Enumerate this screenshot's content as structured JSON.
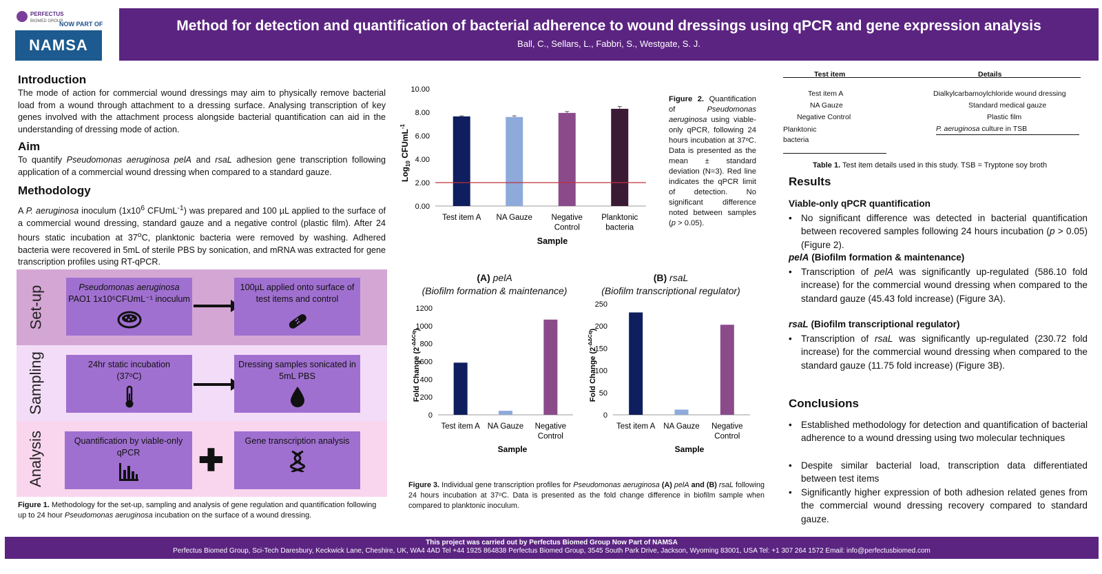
{
  "logo": {
    "brand": "PERFECTUS",
    "brand_sub": "BIOMED GROUP",
    "now_part": "NOW PART OF",
    "namsa": "NAMSA"
  },
  "header": {
    "title": "Method for detection and quantification of bacterial adherence to wound dressings using qPCR and gene expression analysis",
    "authors": "Ball, C., Sellars, L., Fabbri, S., Westgate, S. J."
  },
  "intro": {
    "heading": "Introduction",
    "text": "The mode of action for commercial wound dressings may aim to physically remove bacterial load from a wound through attachment to a dressing surface. Analysing transcription of key genes involved with the attachment process alongside bacterial quantification can aid in the understanding of dressing mode of action."
  },
  "aim": {
    "heading": "Aim",
    "pre": "To quantify ",
    "species": "Pseudomonas aeruginosa pelA",
    "mid": " and ",
    "gene": "rsaL",
    "post": " adhesion gene transcription following application of a commercial wound dressing when compared to a standard gauze."
  },
  "methodology": {
    "heading": "Methodology",
    "pre": "A ",
    "species": "P. aeruginosa",
    "mid1": " inoculum (1x10",
    "sup1": "6",
    "mid2": " CFUmL",
    "sup2": "-1",
    "mid3": ") was prepared and 100 µL applied to the surface of a commercial wound dressing, standard gauze and a negative control (plastic film). After 24 hours static incubation at 37",
    "sup3": "o",
    "post": "C, planktonic bacteria were removed by washing. Adhered bacteria were recovered in 5mL of sterile PBS by sonication, and mRNA was extracted for gene transcription profiles using RT-qPCR."
  },
  "flow": {
    "setup_label": "Set-up",
    "sampling_label": "Sampling",
    "analysis_label": "Analysis",
    "setup_box1_line1": "Pseudomonas aeruginosa",
    "setup_box1_line2": "PAO1 1x10⁶CFUmL⁻¹ inoculum",
    "setup_box2": "100µL applied onto surface of test items and control",
    "sampling_box1_line1": "24hr static incubation",
    "sampling_box1_line2": "(37ᵒC)",
    "sampling_box2": "Dressing samples sonicated in 5mL PBS",
    "analysis_box1": "Quantification by viable-only qPCR",
    "analysis_box2": "Gene transcription analysis",
    "icons": [
      "petri-dish-icon",
      "bandage-icon",
      "thermometer-icon",
      "droplet-icon",
      "bar-chart-icon",
      "dna-icon",
      "plus-icon"
    ],
    "colors": {
      "setup_band": "#d4a6d4",
      "sampling_band": "#f3dcf7",
      "analysis_band": "#f9d6ee",
      "box": "#a070d0"
    }
  },
  "fig1_caption": {
    "label": "Figure 1.",
    "pre": "  Methodology for the set-up, sampling and analysis of gene regulation and quantification following up to 24 hour ",
    "species": "Pseudomonas aeruginosa",
    "post": " incubation on the surface of a wound dressing."
  },
  "fig2_caption": {
    "label": "Figure 2.",
    "pre": " Quantification of ",
    "species": "Pseudomonas aeruginosa",
    "post": " using viable-only qPCR, following 24 hours incubation at 37ᵒC. Data is presented as the mean ± standard deviation (N=3). Red line indicates the qPCR limit of detection. No significant difference noted between samples (",
    "p": "p",
    "end": " > 0.05)."
  },
  "fig3": {
    "a_title_prefix": "(A) ",
    "a_title_gene": "pelA",
    "a_subtitle": "(Biofilm formation & maintenance)",
    "b_title_prefix": "(B) ",
    "b_title_gene": "rsaL",
    "b_subtitle": "(Biofilm transcriptional regulator)"
  },
  "fig3_caption": {
    "label": "Figure 3.",
    "pre": "  Individual gene transcription profiles for ",
    "species": "Pseudomonas aeruginosa",
    "a": " (A) ",
    "gene_a": "pelA",
    "and": " and (B) ",
    "gene_b": "rsaL",
    "post": " following 24 hours incubation at 37ᵒC. Data is presented as the fold change difference in biofilm sample when compared to planktonic inoculum."
  },
  "chart_data": [
    {
      "type": "bar",
      "categories": [
        "Test item A",
        "NA Gauze",
        "Negative Control",
        "Planktonic bacteria"
      ],
      "values": [
        7.65,
        7.6,
        7.95,
        8.3
      ],
      "errors": [
        0.05,
        0.1,
        0.12,
        0.2
      ],
      "colors": [
        "#0f1e5e",
        "#8eaadb",
        "#8b4b8b",
        "#3b1a35"
      ],
      "xlabel": "Sample",
      "ylabel": "Log10 CFUmL-1",
      "ylim": [
        0,
        10
      ],
      "yticks": [
        "0.00",
        "2.00",
        "4.00",
        "6.00",
        "8.00",
        "10.00"
      ],
      "limit_line": 2.0,
      "limit_color": "#c0303a"
    },
    {
      "type": "bar",
      "categories": [
        "Test item A",
        "NA Gauze",
        "Negative Control"
      ],
      "values": [
        586.1,
        45.43,
        1070
      ],
      "colors": [
        "#0f1e5e",
        "#8eaadb",
        "#8b4b8b"
      ],
      "xlabel": "Sample",
      "ylabel": "Fold Change (2-ΔΔCq)",
      "ylim": [
        0,
        1200
      ],
      "yticks": [
        "0",
        "200",
        "400",
        "600",
        "800",
        "1000",
        "1200"
      ]
    },
    {
      "type": "bar",
      "categories": [
        "Test item A",
        "NA Gauze",
        "Negative Control"
      ],
      "values": [
        230.72,
        11.75,
        203
      ],
      "colors": [
        "#0f1e5e",
        "#8eaadb",
        "#8b4b8b"
      ],
      "xlabel": "Sample",
      "ylabel": "Fold Change (2-ΔΔCq)",
      "ylim": [
        0,
        250
      ],
      "yticks": [
        "0",
        "50",
        "100",
        "150",
        "200",
        "250"
      ]
    }
  ],
  "table1": {
    "col1": "Test item",
    "col2": "Details",
    "rows": [
      {
        "item": "Test item A",
        "details": "Dialkylcarbamoylchloride wound dressing"
      },
      {
        "item": "NA Gauze",
        "details": "Standard medical gauze"
      },
      {
        "item": "Negative Control",
        "details": "Plastic film"
      },
      {
        "item": "Planktonic bacteria",
        "details_species": "P. aeruginosa",
        "details": " culture in TSB"
      }
    ],
    "caption_label": "Table 1.",
    "caption": " Test item details used in this study. TSB = Tryptone soy broth"
  },
  "results": {
    "heading": "Results",
    "sub1": "Viable-only qPCR quantification",
    "b1_pre": "No significant difference was detected in bacterial quantification between recovered samples following 24 hours incubation (",
    "b1_p": "p",
    "b1_post": " > 0.05) (Figure 2).",
    "sub2_gene": "pelA",
    "sub2_rest": " (Biofilm formation & maintenance)",
    "b2_pre": "Transcription of ",
    "b2_gene": "pelA",
    "b2_post": " was significantly up-regulated (586.10 fold increase) for the commercial wound dressing when compared to the standard gauze (45.43 fold increase) (Figure 3A).",
    "sub3_gene": "rsaL",
    "sub3_rest": " (Biofilm transcriptional regulator)",
    "b3_pre": "Transcription of ",
    "b3_gene": "rsaL",
    "b3_post": " was significantly up-regulated (230.72 fold increase) for the commercial wound dressing when compared to the standard gauze (11.75 fold increase) (Figure 3B)."
  },
  "conclusions": {
    "heading": "Conclusions",
    "items": [
      "Established methodology for detection and quantification of bacterial adherence to a wound dressing using two molecular techniques",
      "Despite similar bacterial load, transcription data differentiated between test items",
      "Significantly higher expression of both adhesion related genes from the commercial wound dressing recovery compared to standard gauze."
    ]
  },
  "footer": {
    "line1": "This project was carried out by Perfectus Biomed Group  Now Part of NAMSA",
    "line2": "Perfectus Biomed Group, Sci-Tech Daresbury, Keckwick Lane, Cheshire, UK, WA4 4AD Tel +44 1925 864838 Perfectus Biomed Group, 3545 South Park Drive, Jackson, Wyoming 83001, USA Tel: +1 307 264 1572 Email: ",
    "email": "info@perfectusbiomed.com"
  }
}
